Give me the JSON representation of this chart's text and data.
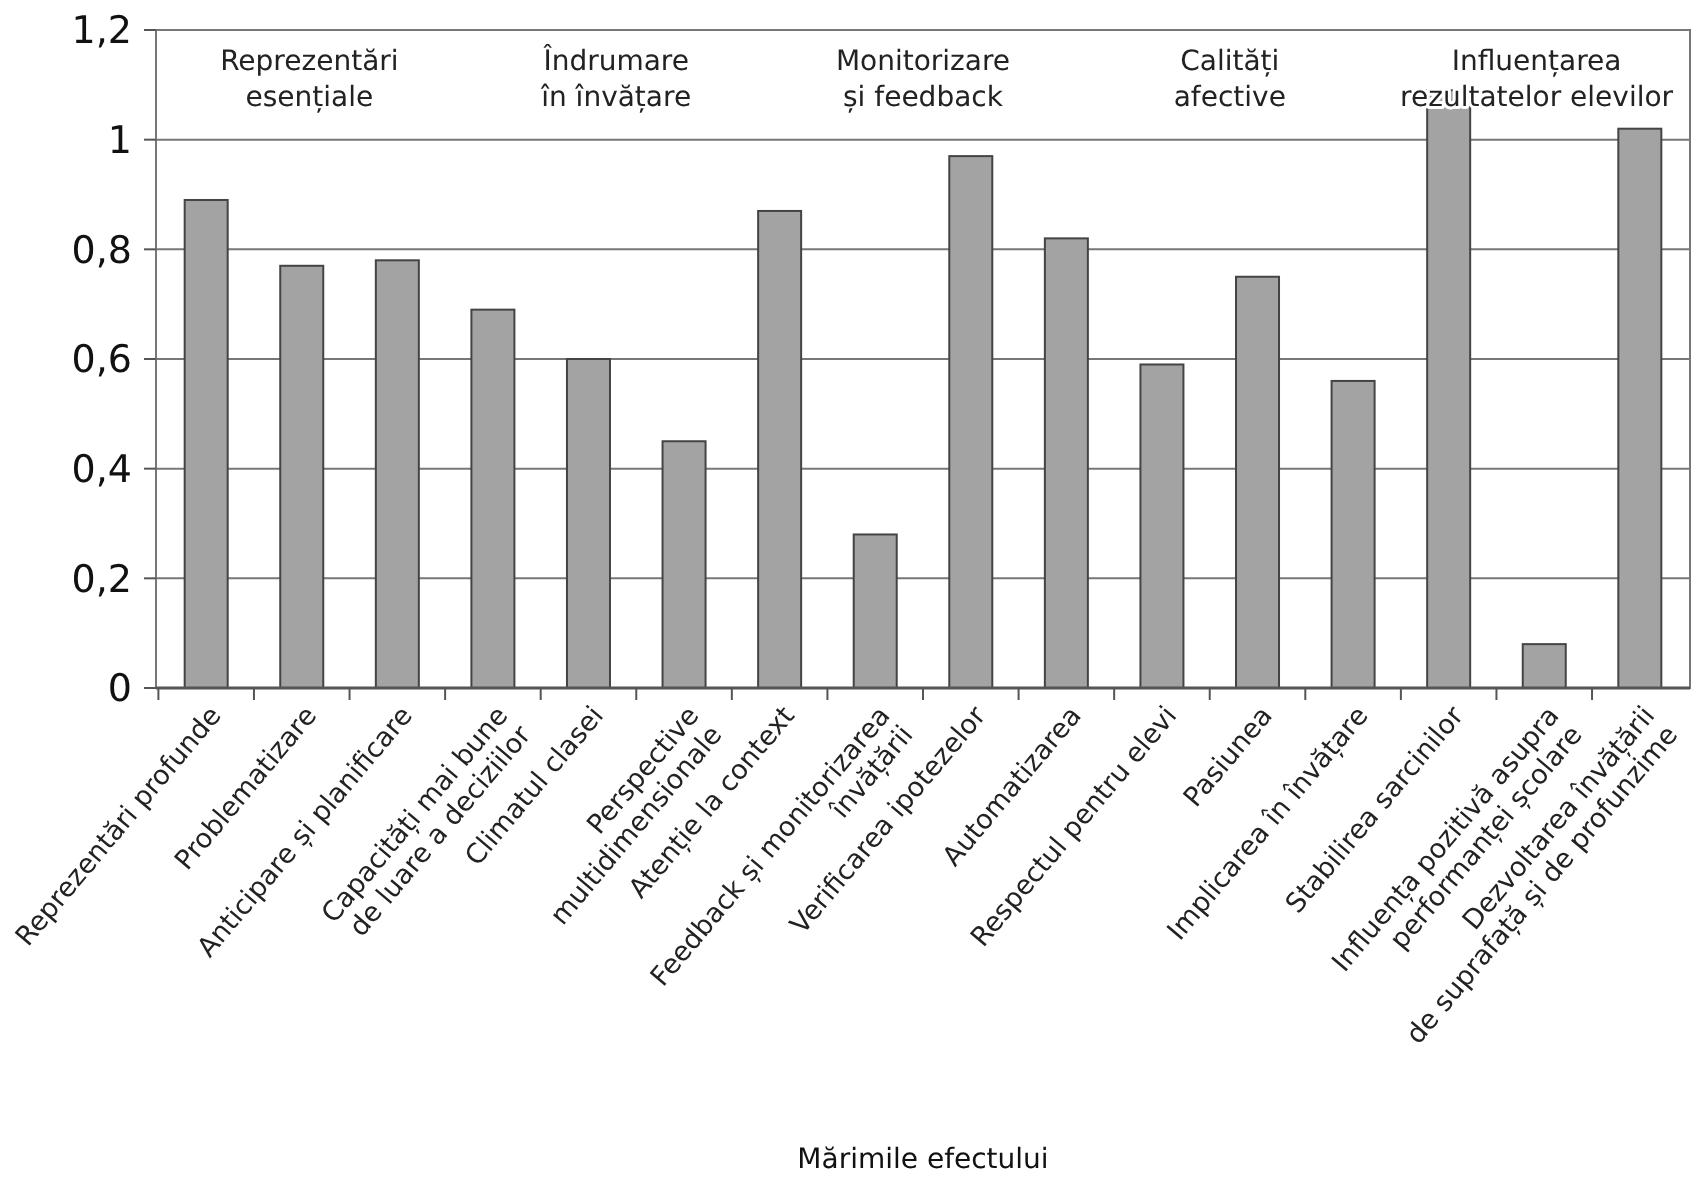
{
  "chart_data": {
    "type": "bar",
    "xlabel": "Mărimile efectului",
    "categories": [
      "Reprezentări profunde",
      "Problematizare",
      "Anticipare și planificare",
      "Capacități mai bune\nde luare a deciziilor",
      "Climatul clasei",
      "Perspective\nmultidimensionale",
      "Atenție la context",
      "Feedback și monitorizarea\nînvățării",
      "Verificarea ipotezelor",
      "Automatizarea",
      "Respectul pentru elevi",
      "Pasiunea",
      "Implicarea în învățare",
      "Stabilirea sarcinilor",
      "Influența pozitivă asupra\nperformanței școlare",
      "Dezvoltarea învățării\nde suprafață și de profunzime"
    ],
    "values": [
      0.89,
      0.77,
      0.78,
      0.69,
      0.6,
      0.45,
      0.87,
      0.28,
      0.97,
      0.82,
      0.59,
      0.75,
      0.56,
      1.09,
      0.08,
      1.02
    ],
    "color": "#a3a3a3",
    "ylim": [
      0,
      1.2
    ],
    "yticks": [
      {
        "value": 0,
        "label": "0"
      },
      {
        "value": 0.2,
        "label": "0,2"
      },
      {
        "value": 0.4,
        "label": "0,4"
      },
      {
        "value": 0.6,
        "label": "0,6"
      },
      {
        "value": 0.8,
        "label": "0,8"
      },
      {
        "value": 1,
        "label": "1"
      },
      {
        "value": 1.2,
        "label": "1,2"
      }
    ],
    "grid": "y",
    "annotations": [
      "Reprezentări\nesențiale",
      "Îndrumare\nîn învățare",
      "Monitorizare\nși feedback",
      "Calități\nafective",
      "Influențarea\nrezultatelor elevilor"
    ]
  }
}
